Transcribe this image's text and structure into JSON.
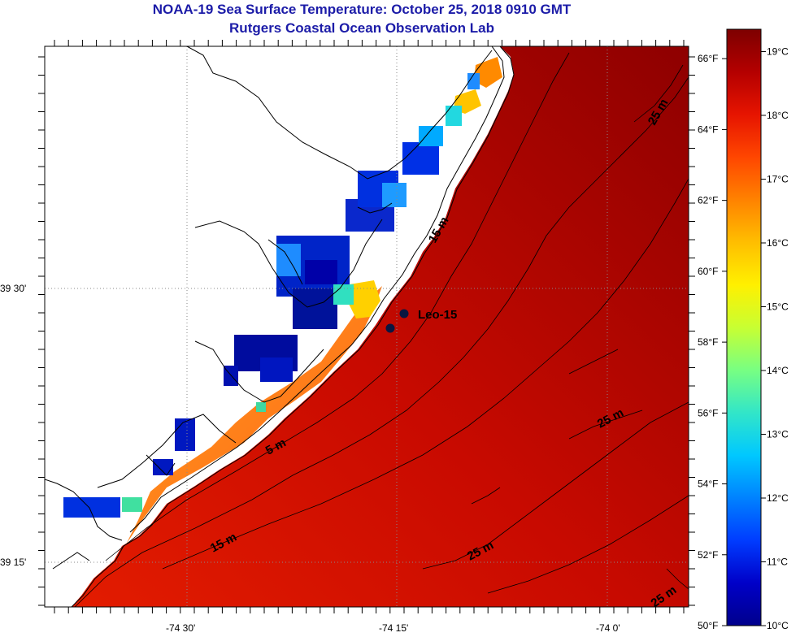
{
  "title": {
    "line1": "NOAA-19 Sea Surface Temperature:  October 25, 2018 0910 GMT",
    "line2": "Rutgers Coastal Ocean Observation Lab"
  },
  "map": {
    "lat_labels": [
      "39 30'",
      "39 15'"
    ],
    "lon_labels": [
      "-74 30'",
      "-74 15'",
      "-74 0'"
    ],
    "station": {
      "name": "Leo-15"
    },
    "depth_labels": [
      "5 m",
      "15 m",
      "15 m",
      "25 m",
      "25 m",
      "25 m",
      "25 m"
    ],
    "colors": {
      "land": "#ffffff",
      "coastline": "#000000",
      "gridline": "#8a8a8a",
      "station_marker": "#0a1640"
    }
  },
  "colorbar": {
    "celsius_labels": [
      "19°C",
      "18°C",
      "17°C",
      "16°C",
      "15°C",
      "14°C",
      "13°C",
      "12°C",
      "11°C",
      "10°C"
    ],
    "fahrenheit_labels": [
      "66°F",
      "64°F",
      "62°F",
      "60°F",
      "58°F",
      "56°F",
      "54°F",
      "52°F",
      "50°F"
    ],
    "colormap": [
      "#7d0000",
      "#b40000",
      "#e61400",
      "#ff4600",
      "#ff8200",
      "#ffbe00",
      "#fff000",
      "#c8ff32",
      "#78ff82",
      "#32e6c8",
      "#00c8ff",
      "#0082ff",
      "#003cff",
      "#0000c8",
      "#00008c"
    ]
  }
}
